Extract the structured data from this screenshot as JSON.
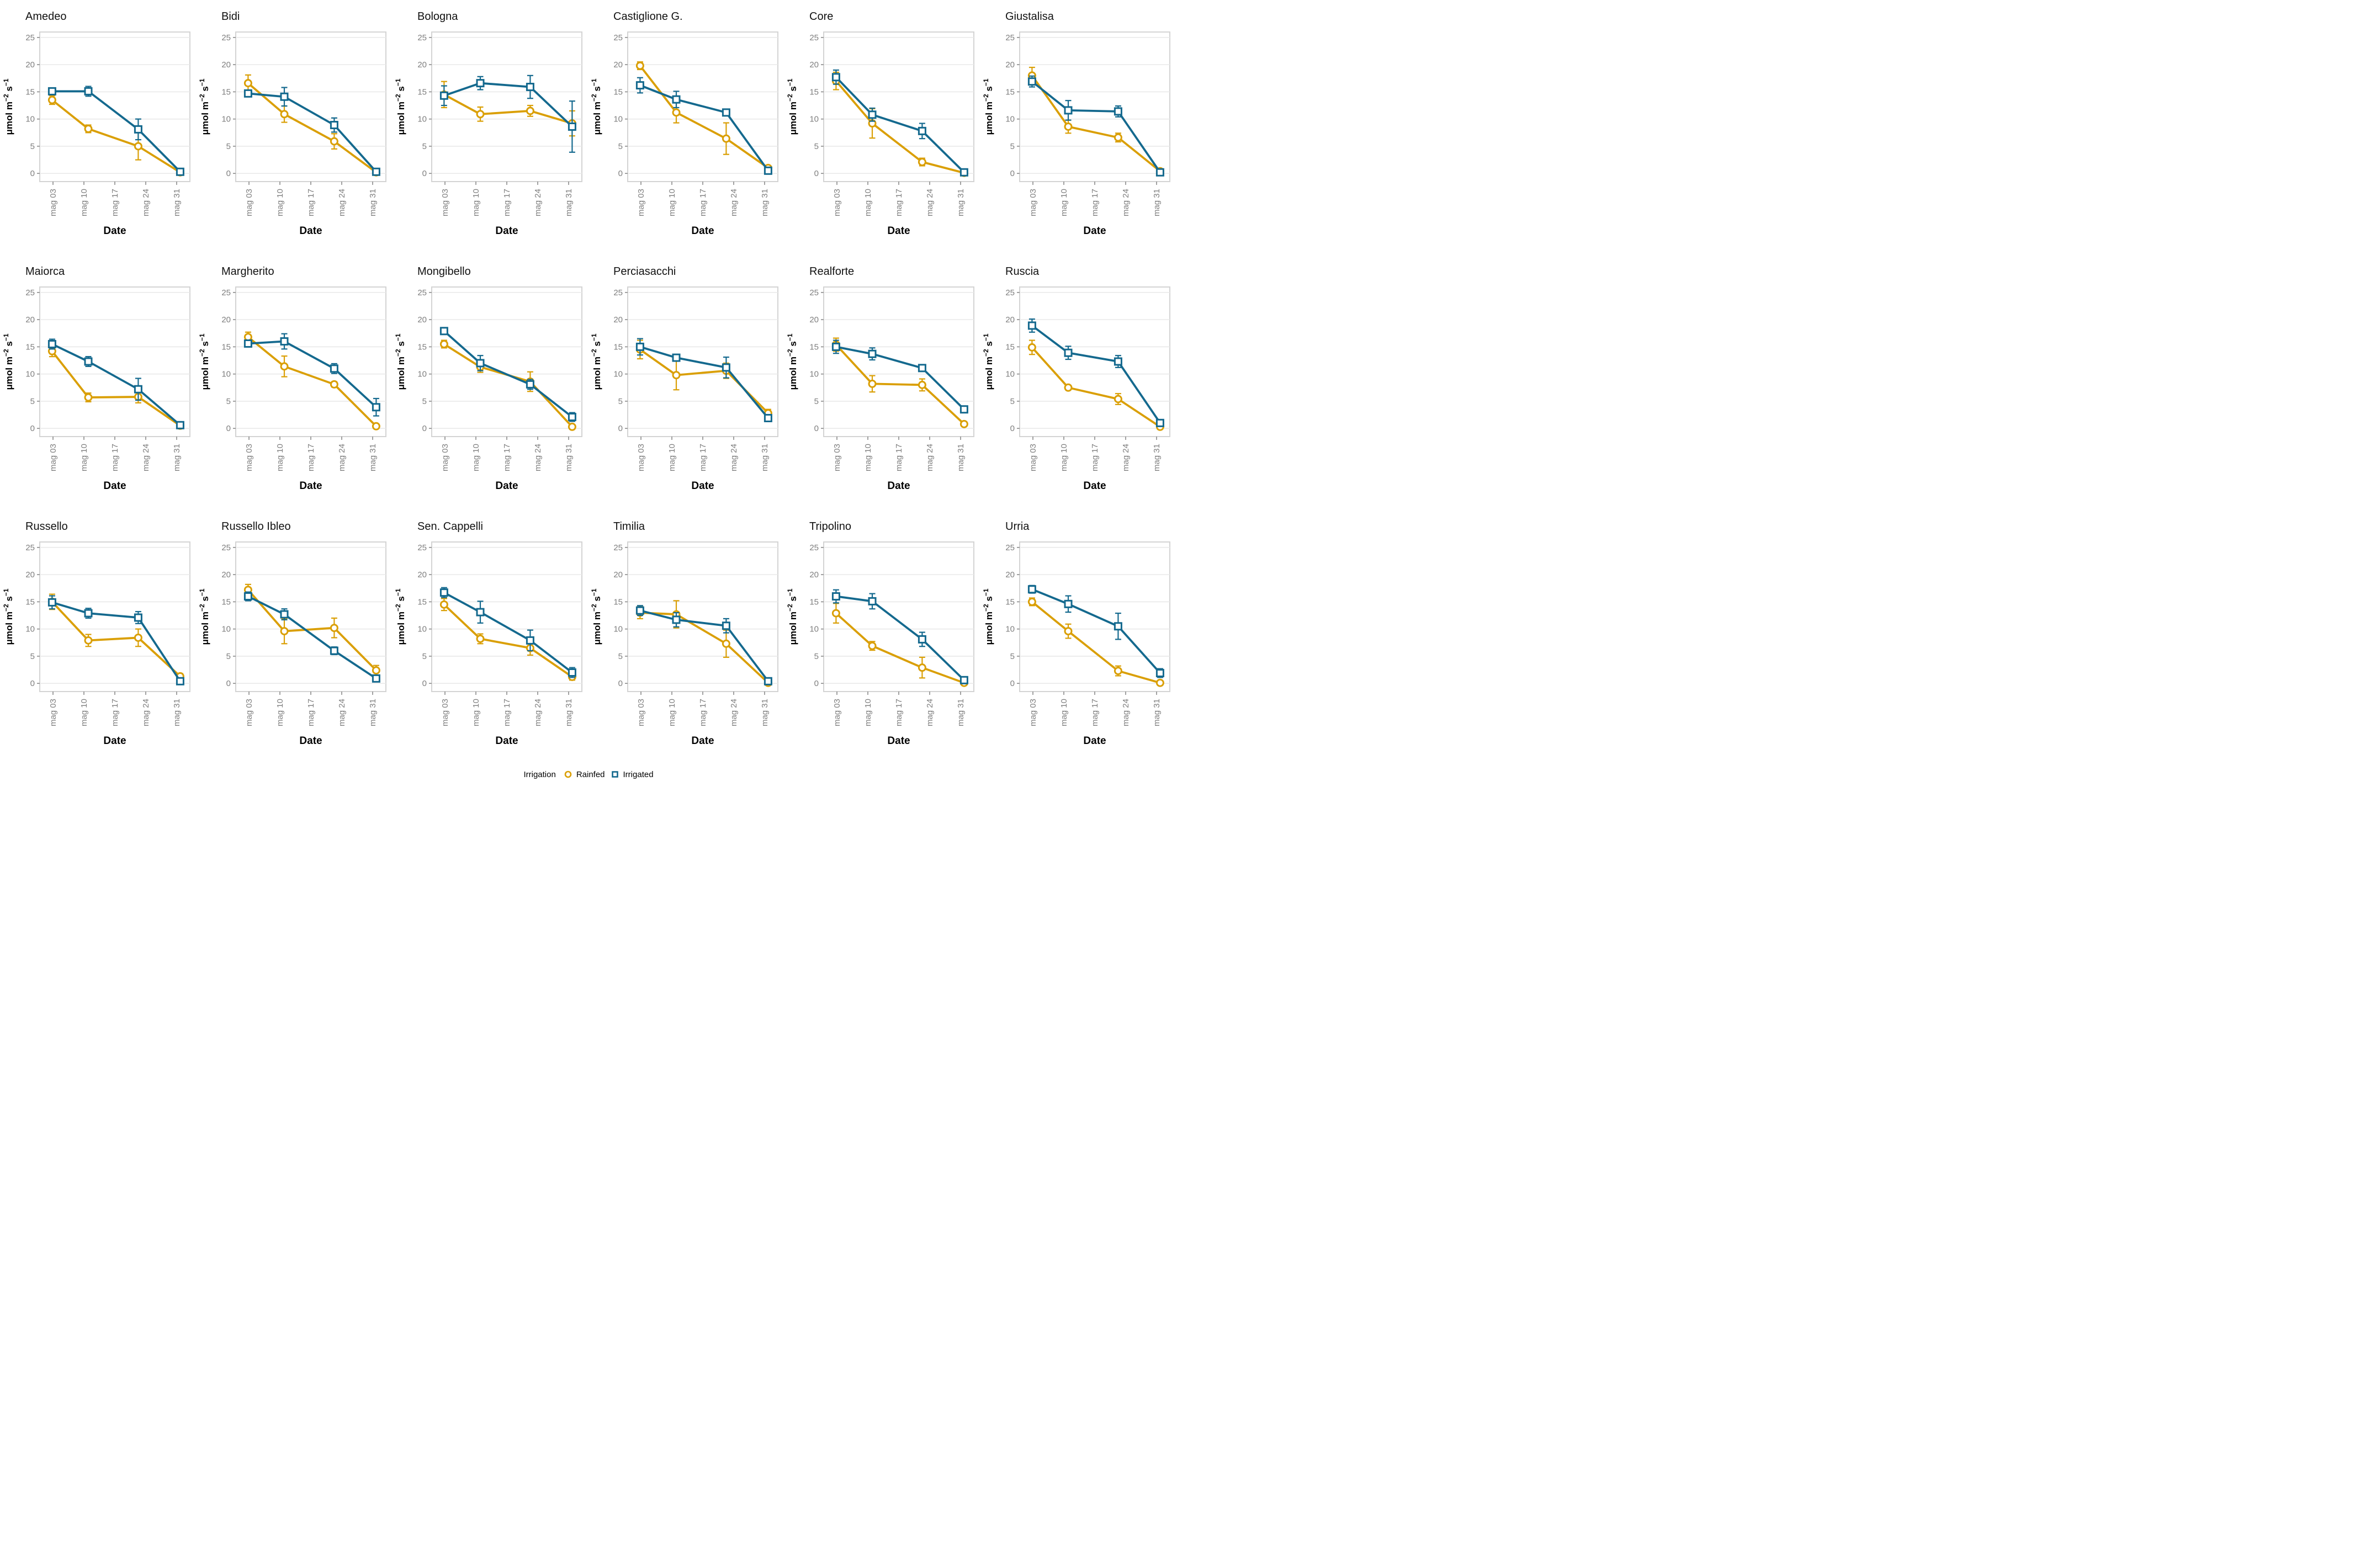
{
  "chart_data": {
    "type": "line",
    "title": "",
    "xlabel": "Date",
    "ylabel": "μmol m⁻² s⁻¹",
    "ylabel_parts": [
      {
        "text": "μmol m"
      },
      {
        "text": "−2",
        "sup": true
      },
      {
        "text": " s"
      },
      {
        "text": "−1",
        "sup": true
      }
    ],
    "ylim": [
      0,
      25
    ],
    "yticks": [
      0,
      5,
      10,
      15,
      20,
      25
    ],
    "x_tick_labels": [
      "mag 03",
      "mag 10",
      "mag 17",
      "mag 24",
      "mag 31"
    ],
    "x_tick_days": [
      3,
      10,
      17,
      24,
      31
    ],
    "x_domain_days": [
      0,
      34
    ],
    "x_data_days": [
      2.8,
      11,
      22.3,
      31.8
    ],
    "grid": "horizontal-only",
    "legend": {
      "title": "Irrigation",
      "position": "bottom",
      "entries": [
        {
          "label": "Rainfed",
          "marker": "circle",
          "color": "#DA9F05"
        },
        {
          "label": "Irrigated",
          "marker": "square",
          "color": "#14698E"
        }
      ]
    },
    "facets": [
      {
        "title": "Amedeo",
        "rainfed": {
          "y": [
            13.5,
            8.2,
            5.0,
            0.2
          ],
          "err": [
            0.8,
            0.7,
            2.5,
            0.4
          ]
        },
        "irrigated": {
          "y": [
            15.1,
            15.1,
            8.1,
            0.3
          ],
          "err": [
            0.6,
            0.9,
            1.9,
            0.5
          ]
        }
      },
      {
        "title": "Bidi",
        "rainfed": {
          "y": [
            16.6,
            10.9,
            5.9,
            0.2
          ],
          "err": [
            1.5,
            1.5,
            1.4,
            0.3
          ]
        },
        "irrigated": {
          "y": [
            14.7,
            14.1,
            8.9,
            0.3
          ],
          "err": [
            0.5,
            1.7,
            1.3,
            0.4
          ]
        }
      },
      {
        "title": "Bologna",
        "rainfed": {
          "y": [
            14.5,
            10.9,
            11.5,
            9.2
          ],
          "err": [
            2.4,
            1.3,
            1.0,
            2.3
          ]
        },
        "irrigated": {
          "y": [
            14.3,
            16.6,
            15.9,
            8.6
          ],
          "err": [
            1.8,
            1.2,
            2.1,
            4.7
          ]
        }
      },
      {
        "title": "Castiglione G.",
        "rainfed": {
          "y": [
            19.8,
            11.2,
            6.4,
            1.0
          ],
          "err": [
            0.7,
            1.9,
            2.9,
            0.3
          ]
        },
        "irrigated": {
          "y": [
            16.2,
            13.6,
            11.2,
            0.5
          ],
          "err": [
            1.4,
            1.5,
            0.4,
            0.5
          ]
        }
      },
      {
        "title": "Core",
        "rainfed": {
          "y": [
            17.0,
            9.2,
            2.1,
            0.1
          ],
          "err": [
            1.6,
            2.7,
            0.7,
            0.2
          ]
        },
        "irrigated": {
          "y": [
            17.7,
            10.8,
            7.8,
            0.2
          ],
          "err": [
            1.3,
            1.2,
            1.4,
            0.3
          ]
        }
      },
      {
        "title": "Giustalisa",
        "rainfed": {
          "y": [
            18.0,
            8.6,
            6.6,
            0.4
          ],
          "err": [
            1.5,
            1.2,
            0.8,
            0.3
          ]
        },
        "irrigated": {
          "y": [
            16.9,
            11.6,
            11.4,
            0.2
          ],
          "err": [
            1.0,
            1.8,
            1.0,
            0.3
          ]
        }
      },
      {
        "title": "Maiorca",
        "rainfed": {
          "y": [
            14.2,
            5.7,
            5.8,
            0.5
          ],
          "err": [
            1.0,
            0.8,
            1.1,
            0.3
          ]
        },
        "irrigated": {
          "y": [
            15.5,
            12.3,
            7.2,
            0.6
          ],
          "err": [
            0.9,
            0.9,
            2.0,
            0.4
          ]
        }
      },
      {
        "title": "Margherito",
        "rainfed": {
          "y": [
            16.8,
            11.4,
            8.1,
            0.4
          ],
          "err": [
            0.9,
            1.9,
            0.5,
            0.3
          ]
        },
        "irrigated": {
          "y": [
            15.6,
            16.0,
            11.0,
            3.9
          ],
          "err": [
            0.6,
            1.4,
            0.9,
            1.6
          ]
        }
      },
      {
        "title": "Mongibello",
        "rainfed": {
          "y": [
            15.5,
            11.3,
            8.6,
            0.3
          ],
          "err": [
            0.7,
            1.0,
            1.8,
            0.4
          ]
        },
        "irrigated": {
          "y": [
            17.9,
            12.0,
            8.1,
            2.1
          ],
          "err": [
            0.5,
            1.4,
            0.9,
            0.8
          ]
        }
      },
      {
        "title": "Perciasacchi",
        "rainfed": {
          "y": [
            14.5,
            9.8,
            10.6,
            2.8
          ],
          "err": [
            1.7,
            2.7,
            1.4,
            0.7
          ]
        },
        "irrigated": {
          "y": [
            15.0,
            13.0,
            11.2,
            1.9
          ],
          "err": [
            1.5,
            0.5,
            1.9,
            0.6
          ]
        }
      },
      {
        "title": "Realforte",
        "rainfed": {
          "y": [
            15.4,
            8.2,
            8.0,
            0.8
          ],
          "err": [
            1.2,
            1.5,
            1.1,
            0.3
          ]
        },
        "irrigated": {
          "y": [
            15.0,
            13.7,
            11.1,
            3.5
          ],
          "err": [
            1.2,
            1.1,
            0.5,
            0.6
          ]
        }
      },
      {
        "title": "Ruscia",
        "rainfed": {
          "y": [
            14.9,
            7.5,
            5.4,
            0.3
          ],
          "err": [
            1.3,
            0.4,
            1.0,
            0.2
          ]
        },
        "irrigated": {
          "y": [
            18.9,
            13.9,
            12.3,
            1.0
          ],
          "err": [
            1.2,
            1.2,
            1.1,
            0.4
          ]
        }
      },
      {
        "title": "Russello",
        "rainfed": {
          "y": [
            15.0,
            7.9,
            8.4,
            1.3
          ],
          "err": [
            1.4,
            1.1,
            1.6,
            0.5
          ]
        },
        "irrigated": {
          "y": [
            14.9,
            12.9,
            12.1,
            0.4
          ],
          "err": [
            1.2,
            0.9,
            1.1,
            0.5
          ]
        }
      },
      {
        "title": "Russello Ibleo",
        "rainfed": {
          "y": [
            17.2,
            9.6,
            10.2,
            2.4
          ],
          "err": [
            1.0,
            2.3,
            1.8,
            0.9
          ]
        },
        "irrigated": {
          "y": [
            16.0,
            12.7,
            6.0,
            0.9
          ],
          "err": [
            0.8,
            1.0,
            0.7,
            0.5
          ]
        }
      },
      {
        "title": "Sen. Cappelli",
        "rainfed": {
          "y": [
            14.5,
            8.2,
            6.5,
            1.2
          ],
          "err": [
            1.1,
            0.9,
            1.3,
            0.6
          ]
        },
        "irrigated": {
          "y": [
            16.7,
            13.1,
            7.9,
            2.0
          ],
          "err": [
            0.9,
            2.0,
            1.9,
            0.9
          ]
        }
      },
      {
        "title": "Timilia",
        "rainfed": {
          "y": [
            13.0,
            12.7,
            7.3,
            0.1
          ],
          "err": [
            1.1,
            2.5,
            2.5,
            0.3
          ]
        },
        "irrigated": {
          "y": [
            13.4,
            11.7,
            10.6,
            0.4
          ],
          "err": [
            0.9,
            1.3,
            1.3,
            0.5
          ]
        }
      },
      {
        "title": "Tripolino",
        "rainfed": {
          "y": [
            12.9,
            6.9,
            2.9,
            0.1
          ],
          "err": [
            1.8,
            0.8,
            1.9,
            0.2
          ]
        },
        "irrigated": {
          "y": [
            16.0,
            15.1,
            8.1,
            0.6
          ],
          "err": [
            1.2,
            1.4,
            1.3,
            0.4
          ]
        }
      },
      {
        "title": "Urria",
        "rainfed": {
          "y": [
            15.0,
            9.6,
            2.3,
            0.1
          ],
          "err": [
            0.7,
            1.3,
            0.9,
            0.2
          ]
        },
        "irrigated": {
          "y": [
            17.3,
            14.6,
            10.5,
            1.9
          ],
          "err": [
            0.7,
            1.5,
            2.4,
            0.8
          ]
        }
      }
    ]
  },
  "styles": {
    "rainfed_color": "#DA9F05",
    "irrigated_color": "#14698E",
    "grid_color": "#E9E9E9",
    "panel_border_color": "#D4D4D4",
    "tick_color": "#8A8A8A",
    "axis_text_color": "#7E7E7E",
    "title_color": "#111111",
    "background": "#FFFFFF"
  }
}
